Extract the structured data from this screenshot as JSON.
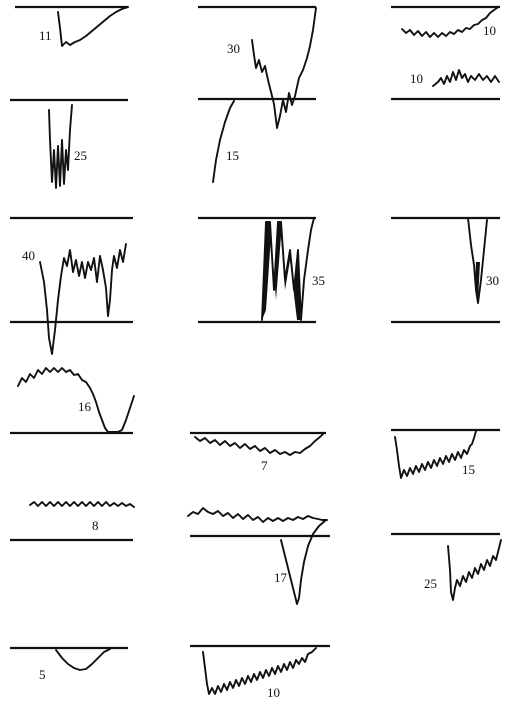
{
  "figure": {
    "panels": [
      {
        "id": "r1c1",
        "label": "11"
      },
      {
        "id": "r1c2",
        "label": "30"
      },
      {
        "id": "r1c3a",
        "label": "10"
      },
      {
        "id": "r1c3b",
        "label": "10"
      },
      {
        "id": "r2c1",
        "label": "25"
      },
      {
        "id": "r2c2",
        "label": "15"
      },
      {
        "id": "r3c1",
        "label": "40"
      },
      {
        "id": "r3c2",
        "label": "35"
      },
      {
        "id": "r3c3",
        "label": "30"
      },
      {
        "id": "r4c1",
        "label": "16"
      },
      {
        "id": "r4c2",
        "label": "7"
      },
      {
        "id": "r4c3",
        "label": "15"
      },
      {
        "id": "r5c1",
        "label": "8"
      },
      {
        "id": "r5c2",
        "label": "17"
      },
      {
        "id": "r5c3",
        "label": "25"
      },
      {
        "id": "r6c1",
        "label": "5"
      },
      {
        "id": "r6c2",
        "label": "10"
      }
    ]
  }
}
